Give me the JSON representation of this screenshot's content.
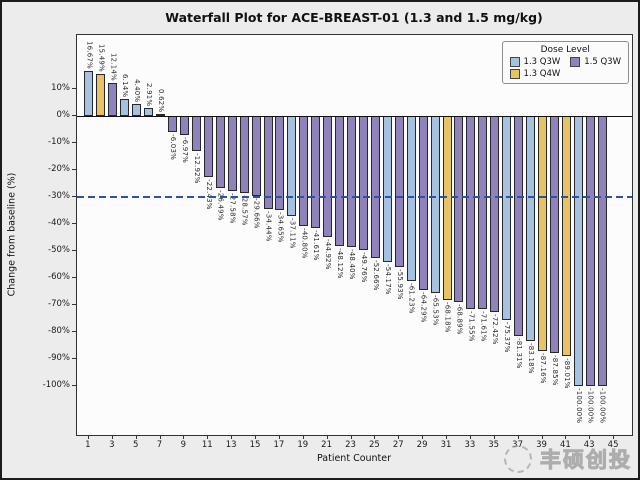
{
  "figure": {
    "background": "#ececec",
    "plot_background": "#fcfcfc"
  },
  "watermark": {
    "text": "丰硕创投"
  },
  "legend": {
    "title": "Dose Level",
    "items": [
      {
        "label": "1.3 Q3W",
        "color": "#a5c3e1"
      },
      {
        "label": "1.5 Q3W",
        "color": "#9083bb"
      },
      {
        "label": "1.3 Q4W",
        "color": "#e7c363"
      }
    ]
  },
  "dose_colors": {
    "1.3 Q3W": "#a5c3e1",
    "1.3 Q4W": "#e7c363",
    "1.5 Q3W": "#9083bb"
  },
  "chart_data": {
    "type": "bar",
    "title": "Waterfall Plot for ACE-BREAST-01 (1.3 and 1.5 mg/kg)",
    "xlabel": "Patient Counter",
    "ylabel": "Change from baseline (%)",
    "ylim": [
      -118,
      30
    ],
    "xlim": [
      0,
      46.5
    ],
    "yticks": [
      10,
      0,
      -10,
      -20,
      -30,
      -40,
      -50,
      -60,
      -70,
      -80,
      -90,
      -100
    ],
    "ytick_labels": [
      "10%",
      "0%",
      "-10%",
      "-20%",
      "-30%",
      "-40%",
      "-50%",
      "-60%",
      "-70%",
      "-80%",
      "-90%",
      "-100%"
    ],
    "xticks": [
      1,
      3,
      5,
      7,
      9,
      11,
      13,
      15,
      17,
      19,
      21,
      23,
      25,
      27,
      29,
      31,
      33,
      35,
      37,
      39,
      41,
      43,
      45
    ],
    "grid": false,
    "legend_position": "upper right",
    "reference_line": {
      "y": -30,
      "style": "dashed",
      "color": "#2b52a8"
    },
    "bar_edge_color": "#28282c",
    "bars": [
      {
        "patient": 1,
        "value": 16.67,
        "label": "16.67%",
        "dose": "1.3 Q3W"
      },
      {
        "patient": 2,
        "value": 15.49,
        "label": "15.49%",
        "dose": "1.3 Q4W"
      },
      {
        "patient": 3,
        "value": 12.14,
        "label": "12.14%",
        "dose": "1.5 Q3W"
      },
      {
        "patient": 4,
        "value": 6.14,
        "label": "6.14%",
        "dose": "1.3 Q3W"
      },
      {
        "patient": 5,
        "value": 4.4,
        "label": "4.40%",
        "dose": "1.3 Q3W"
      },
      {
        "patient": 6,
        "value": 2.91,
        "label": "2.91%",
        "dose": "1.3 Q3W"
      },
      {
        "patient": 7,
        "value": 0.62,
        "label": "0.62%",
        "dose": "1.3 Q3W"
      },
      {
        "patient": 8,
        "value": -6.03,
        "label": "-6.03%",
        "dose": "1.5 Q3W"
      },
      {
        "patient": 9,
        "value": -6.97,
        "label": "-6.97%",
        "dose": "1.5 Q3W"
      },
      {
        "patient": 10,
        "value": -12.92,
        "label": "-12.92%",
        "dose": "1.5 Q3W"
      },
      {
        "patient": 11,
        "value": -22.43,
        "label": "-22.43%",
        "dose": "1.5 Q3W"
      },
      {
        "patient": 12,
        "value": -26.49,
        "label": "-26.49%",
        "dose": "1.5 Q3W"
      },
      {
        "patient": 13,
        "value": -27.58,
        "label": "-27.58%",
        "dose": "1.5 Q3W"
      },
      {
        "patient": 14,
        "value": -28.57,
        "label": "-28.57%",
        "dose": "1.5 Q3W"
      },
      {
        "patient": 15,
        "value": -29.66,
        "label": "-29.66%",
        "dose": "1.5 Q3W"
      },
      {
        "patient": 16,
        "value": -34.44,
        "label": "-34.44%",
        "dose": "1.5 Q3W"
      },
      {
        "patient": 17,
        "value": -34.65,
        "label": "-34.65%",
        "dose": "1.5 Q3W"
      },
      {
        "patient": 18,
        "value": -37.11,
        "label": "-37.11%",
        "dose": "1.3 Q3W"
      },
      {
        "patient": 19,
        "value": -40.8,
        "label": "-40.80%",
        "dose": "1.5 Q3W"
      },
      {
        "patient": 20,
        "value": -41.61,
        "label": "-41.61%",
        "dose": "1.5 Q3W"
      },
      {
        "patient": 21,
        "value": -44.92,
        "label": "-44.92%",
        "dose": "1.5 Q3W"
      },
      {
        "patient": 22,
        "value": -48.12,
        "label": "-48.12%",
        "dose": "1.5 Q3W"
      },
      {
        "patient": 23,
        "value": -48.4,
        "label": "-48.40%",
        "dose": "1.5 Q3W"
      },
      {
        "patient": 24,
        "value": -49.76,
        "label": "-49.76%",
        "dose": "1.5 Q3W"
      },
      {
        "patient": 25,
        "value": -52.66,
        "label": "-52.66%",
        "dose": "1.5 Q3W"
      },
      {
        "patient": 26,
        "value": -54.17,
        "label": "-54.17%",
        "dose": "1.3 Q3W"
      },
      {
        "patient": 27,
        "value": -55.93,
        "label": "-55.93%",
        "dose": "1.5 Q3W"
      },
      {
        "patient": 28,
        "value": -61.23,
        "label": "-61.23%",
        "dose": "1.3 Q3W"
      },
      {
        "patient": 29,
        "value": -64.29,
        "label": "-64.29%",
        "dose": "1.5 Q3W"
      },
      {
        "patient": 30,
        "value": -65.53,
        "label": "-65.53%",
        "dose": "1.3 Q3W"
      },
      {
        "patient": 31,
        "value": -68.18,
        "label": "-68.18%",
        "dose": "1.3 Q4W"
      },
      {
        "patient": 32,
        "value": -68.89,
        "label": "-68.89%",
        "dose": "1.5 Q3W"
      },
      {
        "patient": 33,
        "value": -71.55,
        "label": "-71.55%",
        "dose": "1.5 Q3W"
      },
      {
        "patient": 34,
        "value": -71.61,
        "label": "-71.61%",
        "dose": "1.5 Q3W"
      },
      {
        "patient": 35,
        "value": -72.42,
        "label": "-72.42%",
        "dose": "1.5 Q3W"
      },
      {
        "patient": 36,
        "value": -75.37,
        "label": "-75.37%",
        "dose": "1.3 Q3W"
      },
      {
        "patient": 37,
        "value": -81.31,
        "label": "-81.31%",
        "dose": "1.5 Q3W"
      },
      {
        "patient": 38,
        "value": -83.18,
        "label": "-83.18%",
        "dose": "1.3 Q3W"
      },
      {
        "patient": 39,
        "value": -87.16,
        "label": "-87.16%",
        "dose": "1.3 Q4W"
      },
      {
        "patient": 40,
        "value": -87.85,
        "label": "-87.85%",
        "dose": "1.5 Q3W"
      },
      {
        "patient": 41,
        "value": -89.01,
        "label": "-89.01%",
        "dose": "1.3 Q4W"
      },
      {
        "patient": 42,
        "value": -100.0,
        "label": "-100.00%",
        "dose": "1.3 Q3W"
      },
      {
        "patient": 43,
        "value": -100.0,
        "label": "-100.00%",
        "dose": "1.5 Q3W"
      },
      {
        "patient": 44,
        "value": -100.0,
        "label": "-100.00%",
        "dose": "1.5 Q3W"
      }
    ]
  }
}
